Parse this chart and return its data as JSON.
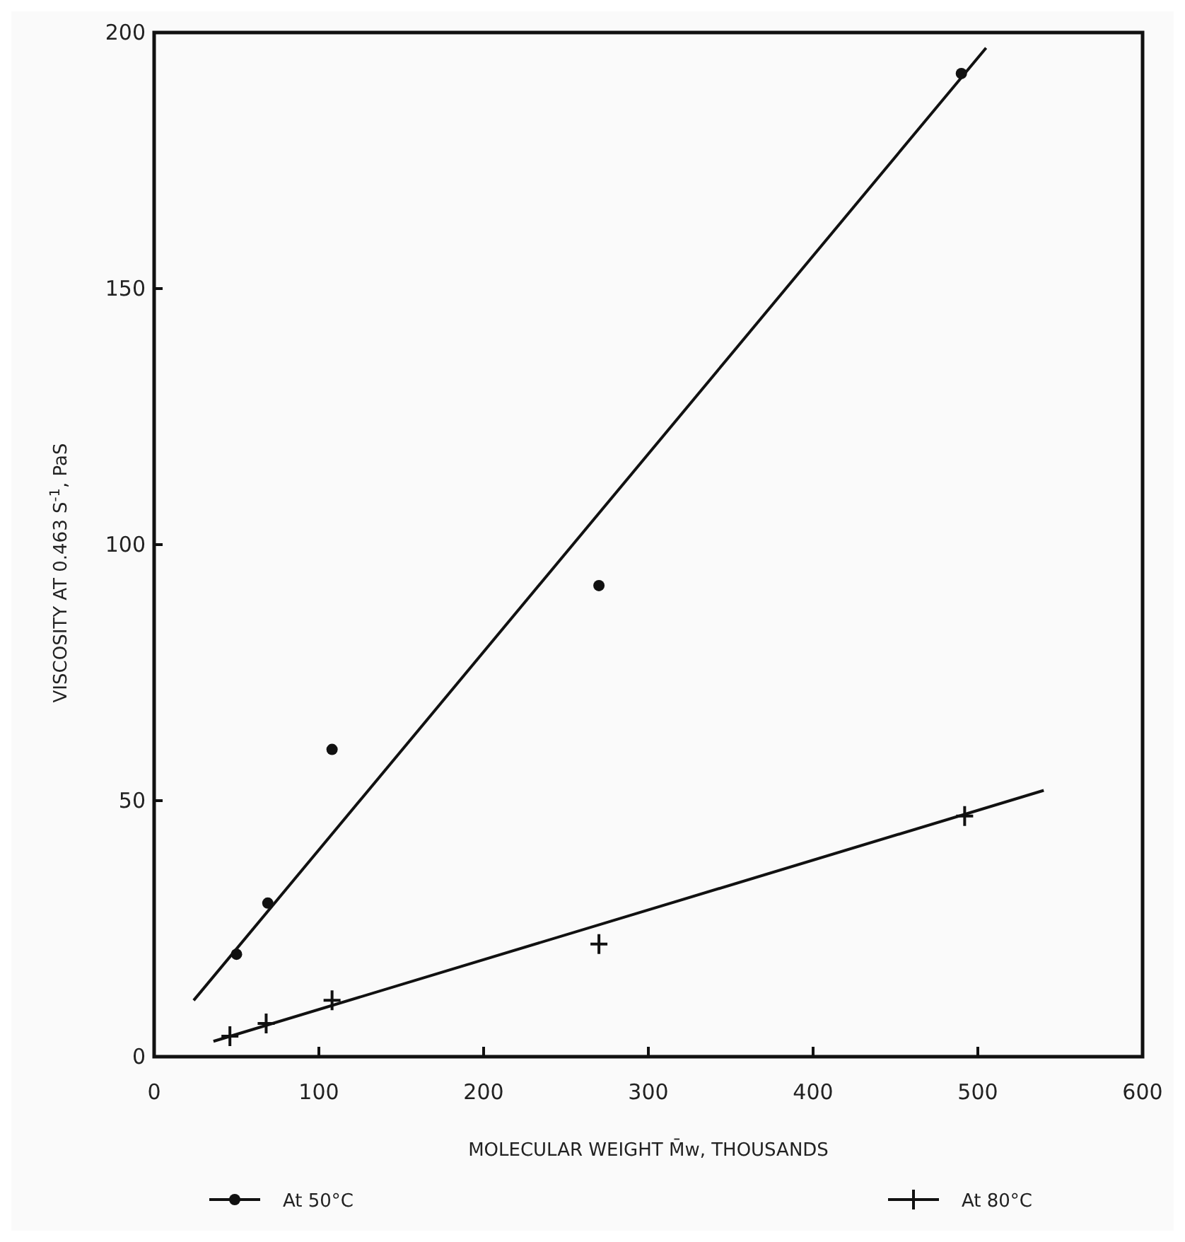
{
  "chart_data": {
    "type": "scatter",
    "xlabel": "MOLECULAR WEIGHT M̄w, THOUSANDS",
    "ylabel": "VISCOSITY AT 0.463 S$^{-1}$, PaS",
    "xlim": [
      0,
      600
    ],
    "ylim": [
      0,
      200
    ],
    "xticks": [
      0,
      100,
      200,
      300,
      400,
      500,
      600
    ],
    "yticks": [
      0,
      50,
      100,
      150,
      200
    ],
    "grid": false,
    "legend": "bottom",
    "series": [
      {
        "name": "At 50°C",
        "marker": "circle",
        "color": "#111111",
        "x": [
          50,
          69,
          108,
          270,
          490
        ],
        "values": [
          20,
          30,
          60,
          92,
          192
        ]
      },
      {
        "name": "At 80°C",
        "marker": "cross",
        "color": "#111111",
        "x": [
          46,
          68,
          108,
          270,
          492
        ],
        "values": [
          4,
          6.5,
          11,
          22,
          47
        ]
      },
      {
        "type": "line",
        "color": "#111111",
        "x": [
          24,
          505
        ],
        "values": [
          11,
          197
        ]
      },
      {
        "type": "line",
        "color": "#111111",
        "x": [
          36,
          540
        ],
        "values": [
          3,
          52
        ]
      }
    ]
  }
}
